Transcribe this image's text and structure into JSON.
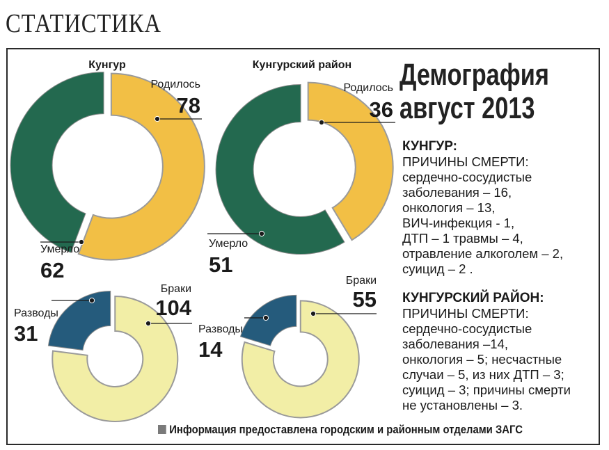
{
  "page": {
    "section_title": "СТАТИСТИКА",
    "title_line1": "Демография",
    "title_line2": "август  2013",
    "footer": "Информация предоставлена  городским и районным отделами ЗАГС"
  },
  "notes": {
    "kungur_header": "КУНГУР:",
    "kungur_lines": [
      "ПРИЧИНЫ СМЕРТИ:",
      "сердечно-сосудистые",
      "заболевания – 16,",
      "онкология – 13,",
      "ВИЧ-инфекция -  1,",
      "ДТП – 1 травмы – 4,",
      "отравление алкоголем – 2,",
      "суицид – 2 ."
    ],
    "rayon_header": "КУНГУРСКИЙ РАЙОН:",
    "rayon_lines": [
      "ПРИЧИНЫ СМЕРТИ:",
      "сердечно-сосудистые",
      "заболевания –14,",
      "онкология – 5; несчастные",
      "случаи – 5, из них ДТП – 3;",
      "суицид – 3; причины смерти",
      "не установлены – 3."
    ]
  },
  "chart_data": [
    {
      "type": "pie",
      "group": "Кунгур",
      "labels": [
        "Родилось",
        "Умерло"
      ],
      "values": [
        78,
        62
      ],
      "colors": [
        "#f2bf45",
        "#23694f"
      ]
    },
    {
      "type": "pie",
      "group": "Кунгурский район",
      "labels": [
        "Родилось",
        "Умерло"
      ],
      "values": [
        36,
        51
      ],
      "colors": [
        "#f2bf45",
        "#23694f"
      ]
    },
    {
      "type": "pie",
      "group": "Кунгур",
      "labels": [
        "Браки",
        "Разводы"
      ],
      "values": [
        104,
        31
      ],
      "colors": [
        "#f2eea6",
        "#255b7c"
      ]
    },
    {
      "type": "pie",
      "group": "Кунгурский район",
      "labels": [
        "Браки",
        "Разводы"
      ],
      "values": [
        55,
        14
      ],
      "colors": [
        "#f2eea6",
        "#255b7c"
      ]
    }
  ]
}
